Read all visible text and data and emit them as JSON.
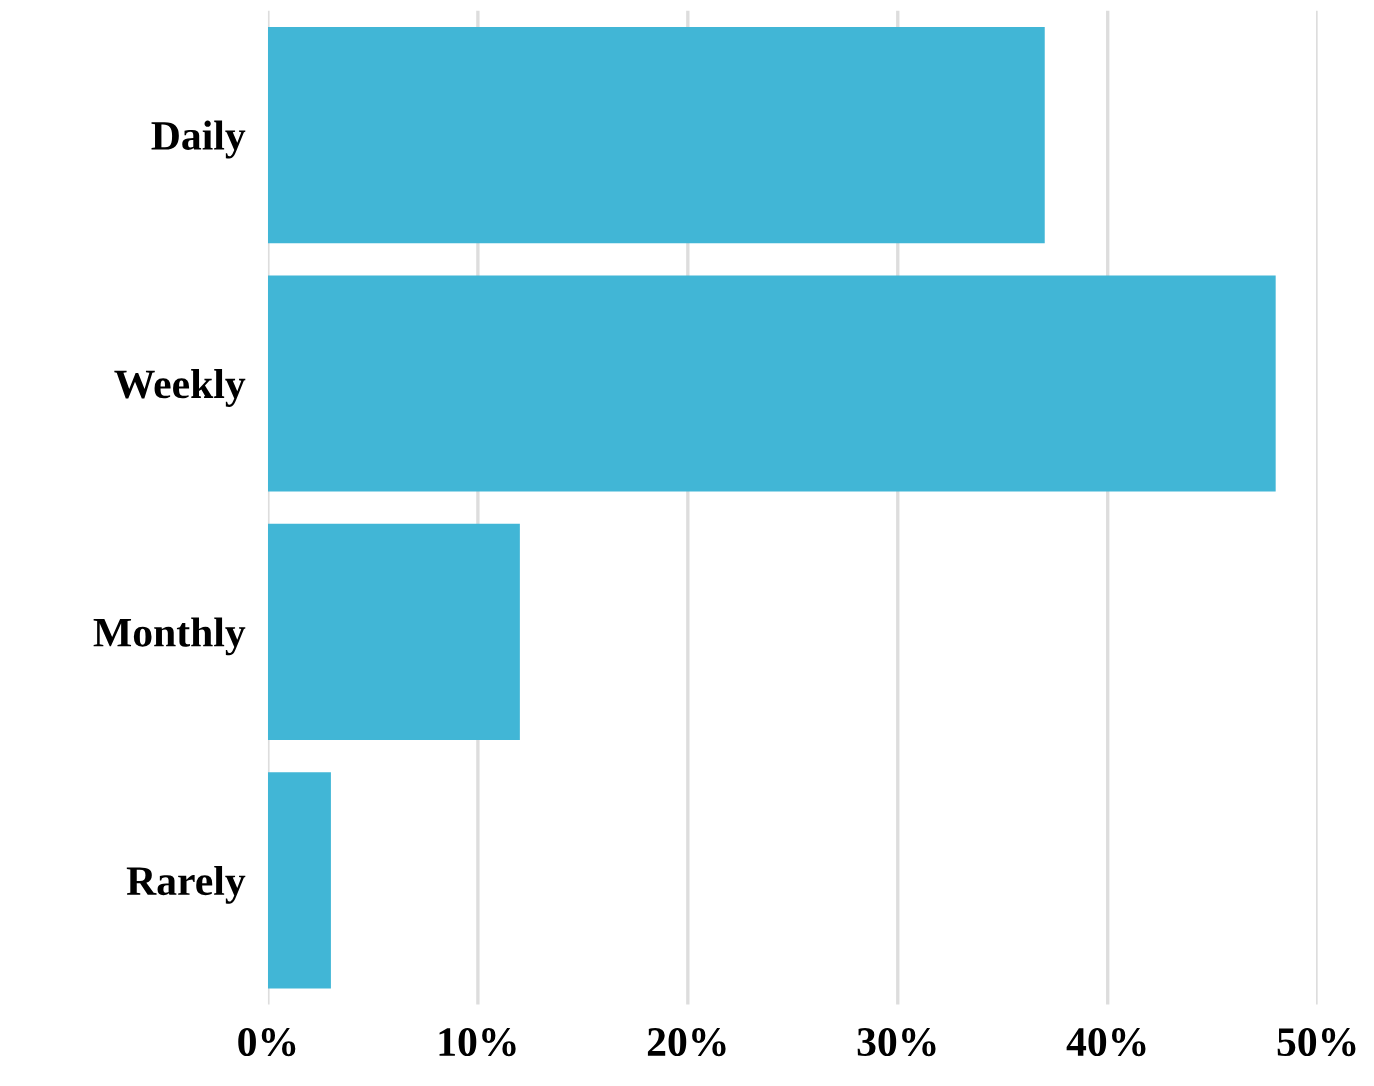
{
  "chart_data": {
    "type": "bar",
    "orientation": "horizontal",
    "categories": [
      "Daily",
      "Weekly",
      "Monthly",
      "Rarely"
    ],
    "values": [
      37,
      48,
      12,
      3
    ],
    "color": "#41b6d6",
    "xlim": [
      0,
      50
    ],
    "xticks": [
      {
        "value": 0,
        "label": "0%"
      },
      {
        "value": 10,
        "label": "10%"
      },
      {
        "value": 20,
        "label": "20%"
      },
      {
        "value": 30,
        "label": "30%"
      },
      {
        "value": 40,
        "label": "40%"
      },
      {
        "value": 50,
        "label": "50%"
      }
    ],
    "grid": "x"
  }
}
